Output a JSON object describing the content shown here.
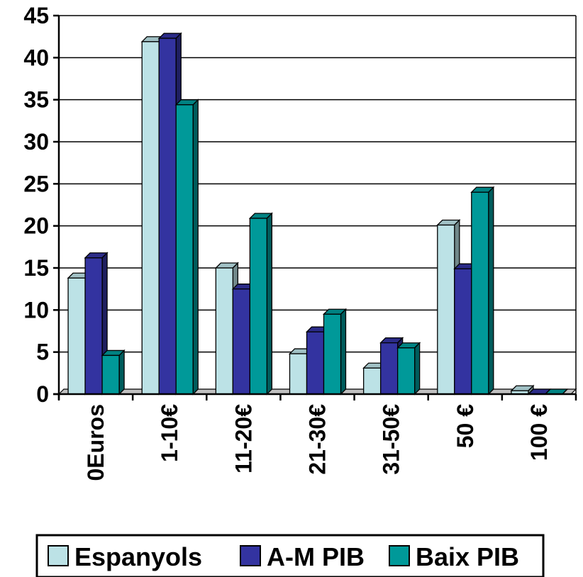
{
  "chart_data": {
    "type": "bar",
    "style": "3d-clustered",
    "categories": [
      "0Euros",
      "1-10€",
      "11-20€",
      "21-30€",
      "31-50€",
      "50 €",
      "100 €"
    ],
    "series": [
      {
        "name": "Espanyols",
        "color": "#BCE2E6",
        "values": [
          13.8,
          41.9,
          15.0,
          4.8,
          3.1,
          20.1,
          0.4
        ]
      },
      {
        "name": "A-M PIB",
        "color": "#3333A0",
        "values": [
          16.2,
          42.3,
          12.5,
          7.4,
          6.1,
          14.9,
          0.0
        ]
      },
      {
        "name": "Baix PIB",
        "color": "#009999",
        "values": [
          4.6,
          34.4,
          20.9,
          9.5,
          5.5,
          24.0,
          0.0
        ]
      }
    ],
    "yticks": [
      "0",
      "5",
      "10",
      "15",
      "20",
      "25",
      "30",
      "35",
      "40",
      "45"
    ],
    "ylim": [
      0,
      45
    ],
    "grid": true,
    "legend": "bottom"
  }
}
